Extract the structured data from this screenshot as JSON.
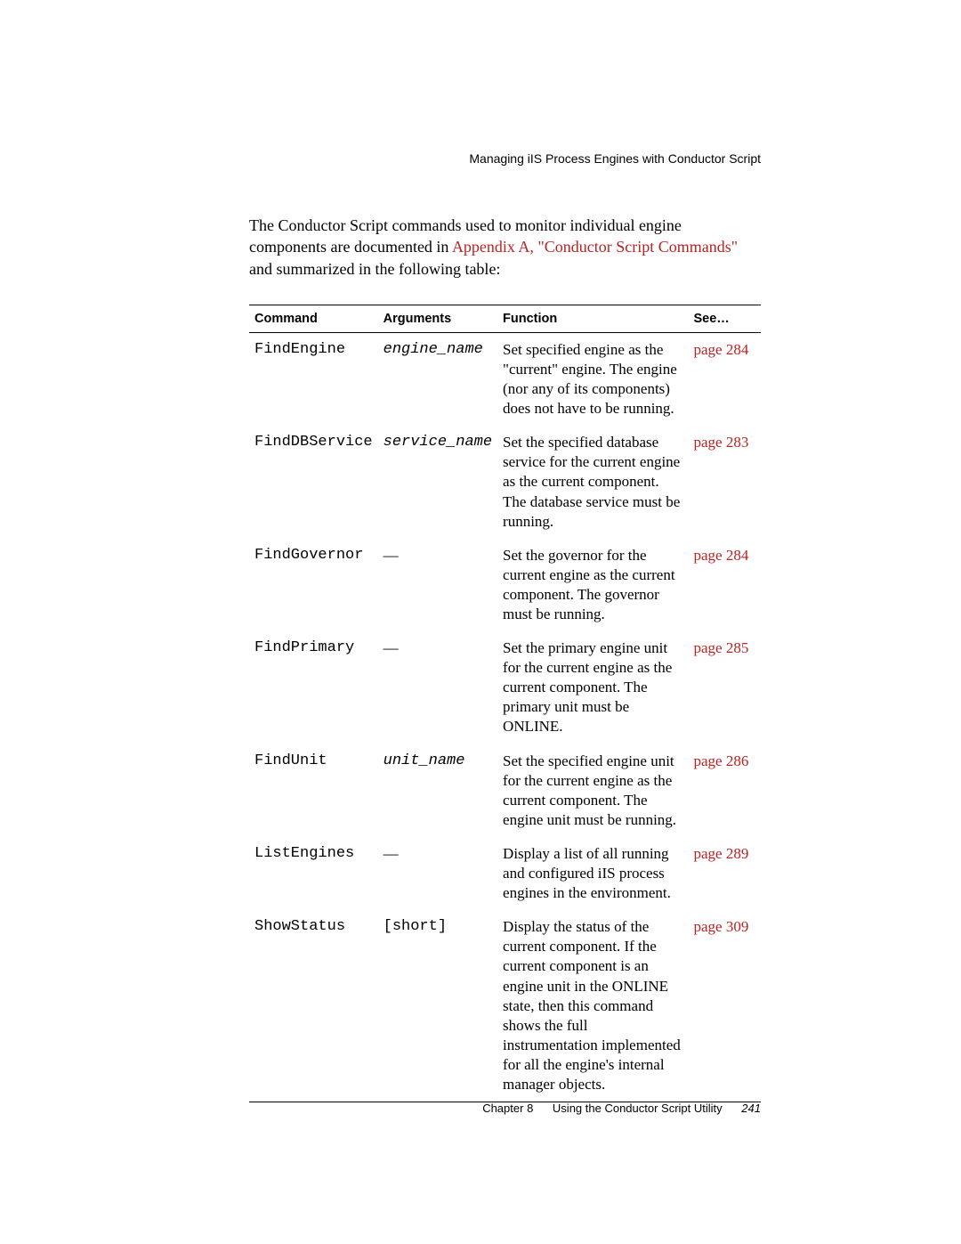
{
  "header": {
    "section": "Managing iIS Process Engines with Conductor Script"
  },
  "intro": {
    "prefix": "The Conductor Script commands used to monitor individual engine components are documented in ",
    "link": "Appendix A, \"Conductor Script Commands\"",
    "suffix": " and summarized in the following table:"
  },
  "table": {
    "headers": {
      "command": "Command",
      "arguments": "Arguments",
      "function": "Function",
      "see": "See…"
    },
    "rows": [
      {
        "command": "FindEngine",
        "arguments": "engine_name",
        "arguments_style": "italic",
        "function": "Set specified engine as the \"current\" engine. The engine (nor any of its components) does not have to be running.",
        "see": "page 284"
      },
      {
        "command": "FindDBService",
        "arguments": "service_name",
        "arguments_style": "italic",
        "function": "Set the specified database service for the current engine as the current component. The database service must be running.",
        "see": "page 283"
      },
      {
        "command": "FindGovernor",
        "arguments": "—",
        "arguments_style": "plain",
        "function": "Set the governor for the current engine as the current component. The governor must be running.",
        "see": "page 284"
      },
      {
        "command": "FindPrimary",
        "arguments": "—",
        "arguments_style": "plain",
        "function": "Set the primary engine unit for the current engine as the current component. The primary unit must be ONLINE.",
        "see": "page 285"
      },
      {
        "command": "FindUnit",
        "arguments": "unit_name",
        "arguments_style": "italic",
        "function": "Set the specified engine unit for the current engine as the current component. The engine unit must be running.",
        "see": "page 286"
      },
      {
        "command": "ListEngines",
        "arguments": "—",
        "arguments_style": "plain",
        "function": "Display a list of all running and configured iIS process engines in the environment.",
        "see": "page 289"
      },
      {
        "command": "ShowStatus",
        "arguments": "[short]",
        "arguments_style": "mono",
        "function": "Display the status of the current component. If the current component is an engine unit in the ONLINE state, then this command shows the full instrumentation implemented for all the engine's internal manager objects.",
        "see": "page 309"
      }
    ]
  },
  "footer": {
    "chapter_label": "Chapter",
    "chapter_num": "8",
    "chapter_title": "Using the Conductor Script Utility",
    "page_num": "241"
  }
}
